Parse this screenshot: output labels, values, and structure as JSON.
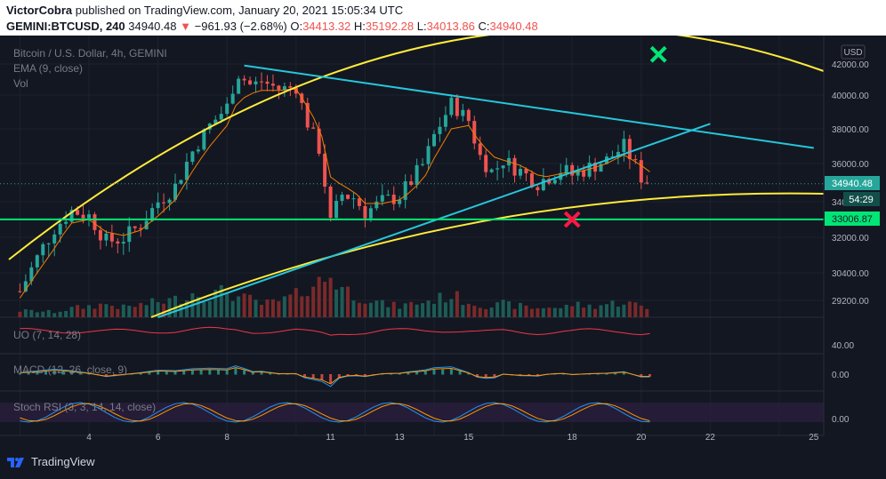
{
  "header": {
    "publisher": "VictorCobra",
    "published_text": "published on TradingView.com, January 20, 2021 15:05:34 UTC",
    "symbol": "GEMINI:BTCUSD, 240",
    "last": "34940.48",
    "change_arrow": "▼",
    "change": "−961.93 (−2.68%)",
    "o_label": "O:",
    "o_value": "34413.32",
    "h_label": "H:",
    "h_value": "35192.28",
    "l_label": "L:",
    "l_value": "34013.86",
    "c_label": "C:",
    "c_value": "34940.48"
  },
  "legend": {
    "series_title": "Bitcoin / U.S. Dollar, 4h, GEMINI",
    "ema": "EMA (9, close)",
    "vol": "Vol",
    "uo": "UO (7, 14, 28)",
    "macd": "MACD (12, 26, close, 9)",
    "stoch": "Stoch RSI (3, 3, 14, 14, close)"
  },
  "price_axis": {
    "currency": "USD",
    "ticks": [
      "42000.00",
      "40000.00",
      "38000.00",
      "36000.00",
      "34000.00",
      "32000.00",
      "30400.00",
      "29200.00"
    ],
    "last_price_label": "34940.48",
    "countdown_label": "54:29",
    "support_label": "33006.87",
    "uo_tick": "40.00",
    "macd_tick": "0.00",
    "stoch_tick": "0.00"
  },
  "time_axis": {
    "ticks": [
      "4",
      "6",
      "8",
      "11",
      "13",
      "15",
      "18",
      "20",
      "22",
      "25"
    ]
  },
  "footer": {
    "brand": "TradingView"
  },
  "colors": {
    "background": "#131722",
    "up": "#26a69a",
    "down": "#ef5350",
    "ema": "#f57c00",
    "trendline": "#26c6da",
    "arc": "#ffeb3b",
    "support": "#00e676",
    "green_x": "#00e676",
    "red_x": "#ff1744"
  },
  "chart_data": {
    "type": "candlestick",
    "title": "Bitcoin / U.S. Dollar, 4h, GEMINI",
    "symbol": "GEMINI:BTCUSD",
    "interval": "4h",
    "ylim": [
      28600,
      43500
    ],
    "y_ticks": [
      42000,
      40000,
      38000,
      36000,
      34000,
      32000,
      30400,
      29200
    ],
    "x_ticks": [
      "4",
      "6",
      "8",
      "11",
      "13",
      "15",
      "18",
      "20",
      "22",
      "25"
    ],
    "last_close": 34940.48,
    "ohlc_last": {
      "open": 34413.32,
      "high": 35192.28,
      "low": 34013.86,
      "close": 34940.48
    },
    "support_level": 33006.87,
    "close_path_x_day": [
      2,
      3,
      3.5,
      4,
      4.5,
      5,
      5.5,
      6,
      6.5,
      7,
      7.5,
      8,
      8.3,
      8.7,
      9,
      9.5,
      10,
      10.3,
      10.7,
      11,
      11.3,
      11.7,
      12,
      12.5,
      13,
      13.3,
      13.7,
      14,
      14.5,
      15,
      15.3,
      15.7,
      16,
      16.5,
      17,
      17.3,
      17.7,
      18,
      18.5,
      19,
      19.5,
      20,
      20.3
    ],
    "close_path_y": [
      29600,
      32500,
      33500,
      33200,
      31800,
      32000,
      32700,
      34000,
      34800,
      36700,
      38200,
      39300,
      41400,
      40600,
      40900,
      40400,
      40500,
      38500,
      36700,
      32800,
      34400,
      34200,
      33400,
      34000,
      34300,
      35000,
      36000,
      37600,
      39500,
      38500,
      36500,
      35500,
      36200,
      35600,
      35000,
      35300,
      35700,
      35400,
      35800,
      36200,
      37000,
      35300,
      34940
    ],
    "ema9": [
      29300,
      31500,
      32800,
      33000,
      32300,
      32100,
      32400,
      33200,
      34100,
      35600,
      37000,
      38200,
      39600,
      40100,
      40300,
      40300,
      40400,
      39400,
      38000,
      35300,
      34900,
      34500,
      33900,
      33900,
      34100,
      34500,
      35200,
      36300,
      38000,
      38200,
      37300,
      36400,
      36200,
      35900,
      35400,
      35300,
      35500,
      35500,
      35700,
      36000,
      36500,
      35900,
      35500
    ],
    "volume_relative": [
      0.15,
      0.12,
      0.2,
      0.25,
      0.3,
      0.22,
      0.28,
      0.35,
      0.4,
      0.55,
      0.5,
      0.6,
      0.45,
      0.4,
      0.3,
      0.35,
      0.5,
      0.7,
      0.8,
      0.95,
      0.7,
      0.5,
      0.45,
      0.3,
      0.25,
      0.3,
      0.35,
      0.4,
      0.5,
      0.35,
      0.3,
      0.25,
      0.3,
      0.25,
      0.2,
      0.25,
      0.2,
      0.3,
      0.25,
      0.3,
      0.35,
      0.25,
      0.15
    ],
    "indicators": [
      "EMA (9, close)",
      "Vol",
      "UO (7, 14, 28)",
      "MACD (12, 26, close, 9)",
      "Stoch RSI (3, 3, 14, 14, close)"
    ],
    "annotations": {
      "descending_trendline": [
        {
          "x_day": 8.5,
          "y": 41900
        },
        {
          "x_day": 25,
          "y": 36900
        }
      ],
      "ascending_trendline": [
        {
          "x_day": 6,
          "y": 28600
        },
        {
          "x_day": 22,
          "y": 38300
        }
      ],
      "green_x": {
        "x_day": 20.5,
        "y": 42600
      },
      "red_x": {
        "x_day": 18,
        "y": 33000
      }
    }
  }
}
